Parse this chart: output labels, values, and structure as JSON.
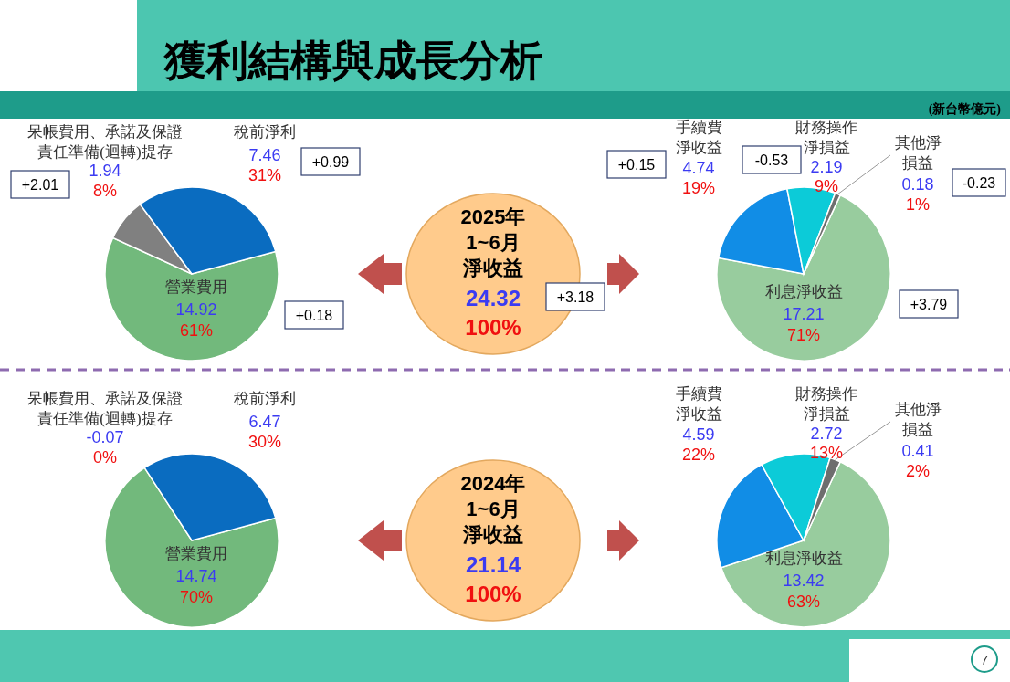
{
  "chart_data": [
    {
      "type": "pie",
      "title": "獲利結構與成長分析",
      "categories": [
        "營業費用",
        "呆帳費用、承諾及保證責任準備(迴轉)提存",
        "稅前淨利"
      ],
      "values": [
        61,
        8,
        31
      ],
      "colors": [
        "#72b97c",
        "#808080",
        "#0a6cc0"
      ],
      "value_labels": [
        "14.92\n61%",
        "1.94\n8%",
        "7.46\n31%"
      ],
      "annotations": [
        "+0.18",
        "+2.01",
        "+0.99"
      ]
    },
    {
      "type": "other",
      "title": "2025年1~6月淨收益",
      "annotations": [
        "24.32",
        "100%",
        "+3.18"
      ]
    },
    {
      "type": "pie",
      "subtitle": "(新台幣億元)",
      "categories": [
        "利息淨收益",
        "手續費淨收益",
        "財務操作淨損益",
        "其他淨損益"
      ],
      "values": [
        71,
        19,
        9,
        1
      ],
      "colors": [
        "#98cc9e",
        "#118de6",
        "#0ccbd8",
        "#6e6e6e"
      ],
      "value_labels": [
        "17.21\n71%",
        "4.74\n19%",
        "2.19\n9%",
        "0.18\n1%"
      ],
      "annotations": [
        "+3.79",
        "+0.15",
        "-0.53",
        "-0.23"
      ]
    },
    {
      "type": "pie",
      "categories": [
        "營業費用",
        "呆帳費用、承諾及保證責任準備(迴轉)提存",
        "稅前淨利"
      ],
      "values": [
        70,
        0,
        30
      ],
      "colors": [
        "#72b97c",
        "#808080",
        "#0a6cc0"
      ],
      "value_labels": [
        "14.74\n70%",
        "-0.07\n0%",
        "6.47\n30%"
      ]
    },
    {
      "type": "other",
      "title": "2024年1~6月淨收益",
      "annotations": [
        "21.14",
        "100%"
      ]
    },
    {
      "type": "pie",
      "categories": [
        "利息淨收益",
        "手續費淨收益",
        "財務操作淨損益",
        "其他淨損益"
      ],
      "values": [
        63,
        22,
        13,
        2
      ],
      "colors": [
        "#98cc9e",
        "#118de6",
        "#0ccbd8",
        "#6e6e6e"
      ],
      "value_labels": [
        "13.42\n63%",
        "4.59\n22%",
        "2.72\n13%",
        "0.41\n2%"
      ],
      "annotations": [
        "7"
      ]
    }
  ]
}
